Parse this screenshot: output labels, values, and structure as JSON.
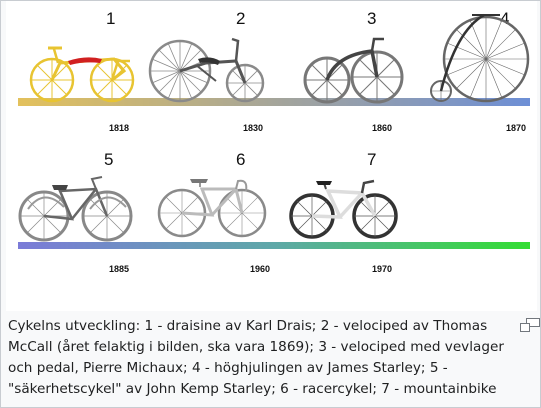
{
  "figure": {
    "row1": {
      "bikes": [
        {
          "number": "1",
          "year": "1818"
        },
        {
          "number": "2",
          "year": "1830"
        },
        {
          "number": "3",
          "year": "1860"
        },
        {
          "number": "4",
          "year": "1870"
        }
      ]
    },
    "row2": {
      "bikes": [
        {
          "number": "5",
          "year": "1885"
        },
        {
          "number": "6",
          "year": "1960"
        },
        {
          "number": "7",
          "year": "1970"
        }
      ]
    },
    "colors": {
      "draisine": "#e8c431",
      "seat_red": "#d12020",
      "velocipede_gray": "#8a8a8a",
      "dark_frame": "#555555",
      "bar1_start": "#e3c15c",
      "bar1_end": "#6d8fd6",
      "bar2_start": "#7b7bd8",
      "bar2_end": "#33dd33"
    }
  },
  "caption": {
    "text": "Cykelns utveckling: 1 - draisine av Karl Drais; 2 - velociped av Thomas McCall (året felaktig i bilden, ska vara 1869); 3 - velociped med vevlager och pedal, Pierre Michaux; 4 - höghjulingen av James Starley; 5 - \"säkerhetscykel\" av John Kemp Starley; 6 - racercykel; 7 - mountainbike"
  },
  "magnify_icon": "magnify-clip-icon"
}
